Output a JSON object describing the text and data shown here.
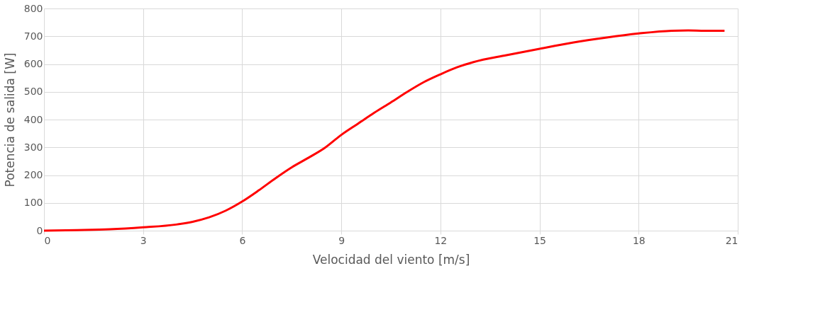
{
  "chart_data": {
    "type": "line",
    "xlabel": "Velocidad del viento [m/s]",
    "ylabel": "Potencia de salida [W]",
    "x": [
      0,
      1,
      2,
      3,
      4,
      4.5,
      5,
      5.5,
      6,
      6.5,
      7,
      7.5,
      8,
      8.5,
      9,
      9.5,
      10,
      10.5,
      11,
      11.5,
      12,
      12.5,
      13,
      14,
      15,
      16,
      17,
      18,
      19,
      19.5,
      20,
      20.6
    ],
    "series": [
      {
        "color": "#ff0000",
        "values": [
          0,
          2,
          5,
          12,
          22,
          32,
          48,
          72,
          105,
          145,
          188,
          228,
          262,
          298,
          345,
          385,
          425,
          462,
          500,
          535,
          563,
          588,
          607,
          632,
          655,
          677,
          695,
          710,
          720,
          721,
          720,
          720
        ]
      }
    ],
    "xlim": [
      0,
      21
    ],
    "xticks": [
      0,
      3,
      6,
      9,
      12,
      15,
      18,
      21
    ],
    "ylim": [
      0,
      800
    ],
    "yticks": [
      0,
      100,
      200,
      300,
      400,
      500,
      600,
      700,
      800
    ],
    "grid": true,
    "marker": "none",
    "line_style": "solid"
  }
}
